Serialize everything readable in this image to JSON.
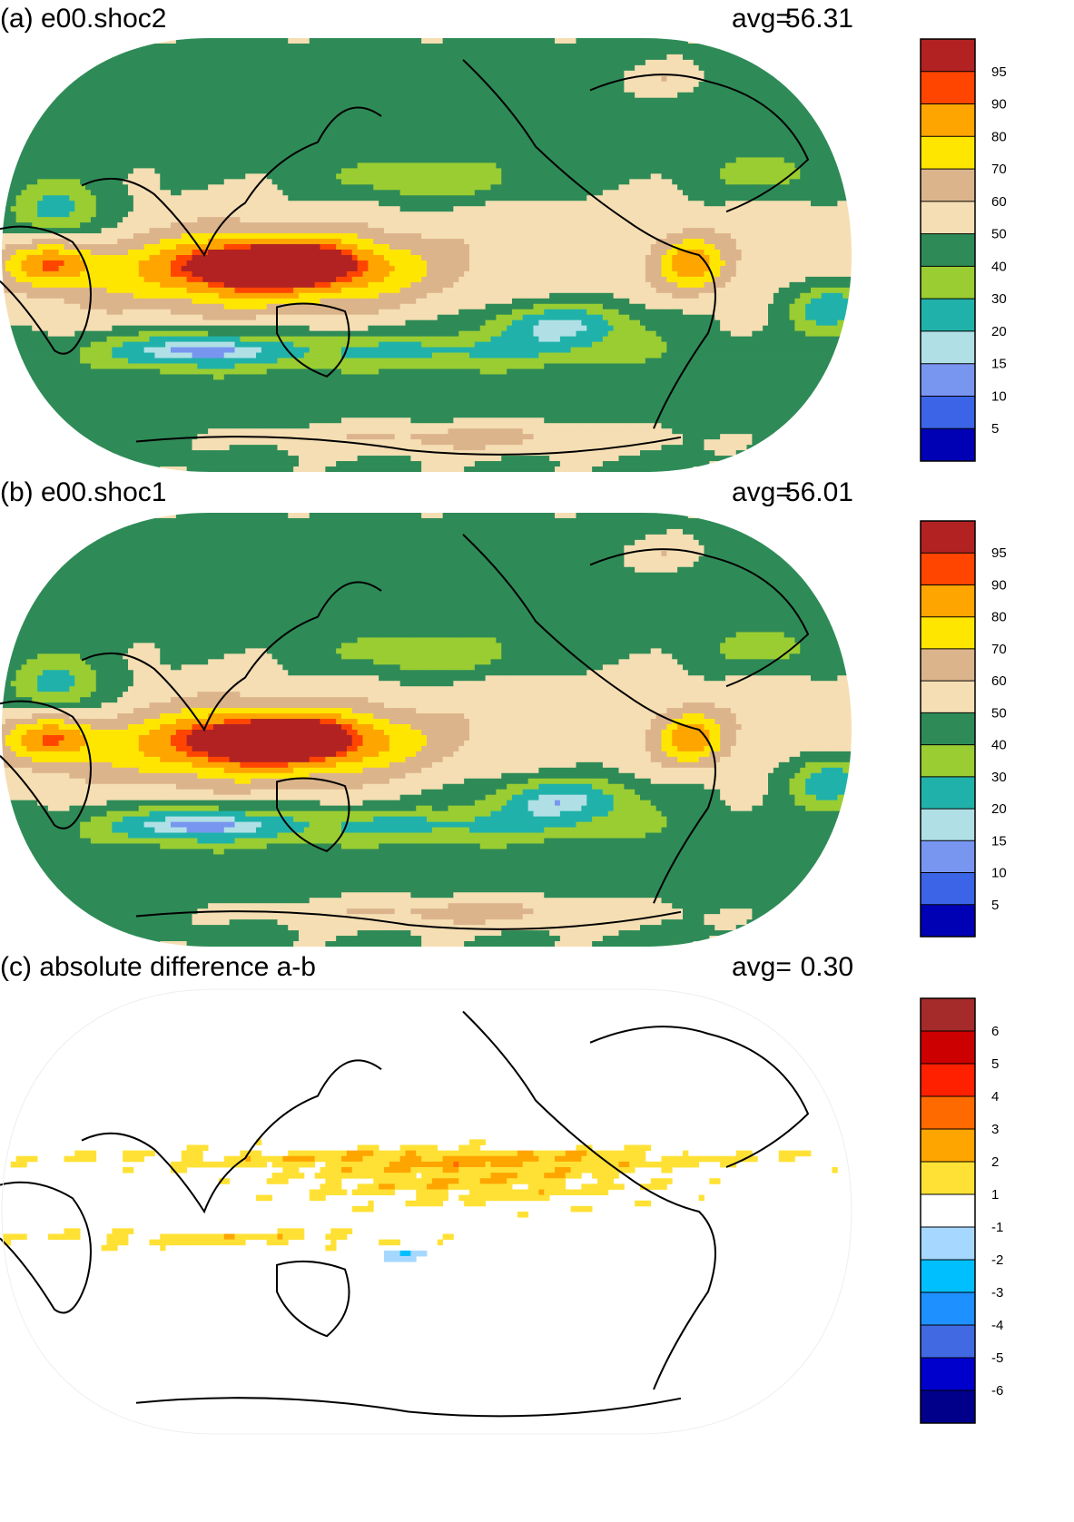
{
  "panels": [
    {
      "title": "(a) e00.shoc2",
      "avg_label": "avg=",
      "avg_value": "56.31",
      "field": "precip_a",
      "colorbar": {
        "colors": [
          "#0000b4",
          "#3c64e6",
          "#7896f0",
          "#b0e0e6",
          "#20b2aa",
          "#9acd32",
          "#2e8b57",
          "#f5deb3",
          "#dcb48c",
          "#ffe600",
          "#ffa500",
          "#ff4500",
          "#b22222"
        ],
        "labels": [
          "5",
          "10",
          "15",
          "20",
          "30",
          "40",
          "50",
          "60",
          "70",
          "80",
          "90",
          "95"
        ]
      }
    },
    {
      "title": "(b) e00.shoc1",
      "avg_label": "avg=",
      "avg_value": "56.01",
      "field": "precip_b",
      "colorbar": {
        "colors": [
          "#0000b4",
          "#3c64e6",
          "#7896f0",
          "#b0e0e6",
          "#20b2aa",
          "#9acd32",
          "#2e8b57",
          "#f5deb3",
          "#dcb48c",
          "#ffe600",
          "#ffa500",
          "#ff4500",
          "#b22222"
        ],
        "labels": [
          "5",
          "10",
          "15",
          "20",
          "30",
          "40",
          "50",
          "60",
          "70",
          "80",
          "90",
          "95"
        ]
      }
    },
    {
      "title": "(c) absolute difference a-b",
      "avg_label": "avg=",
      "avg_value": "0.30",
      "field": "diff",
      "colorbar": {
        "colors": [
          "#00008b",
          "#0000cd",
          "#4169e1",
          "#1e90ff",
          "#00bfff",
          "#a6d8ff",
          "#ffffff",
          "#ffe135",
          "#ffa500",
          "#ff6a00",
          "#ff2000",
          "#cc0000",
          "#a52a2a"
        ],
        "labels": [
          "-6",
          "-5",
          "-4",
          "-3",
          "-2",
          "-1",
          "1",
          "2",
          "3",
          "4",
          "5",
          "6"
        ]
      }
    }
  ]
}
